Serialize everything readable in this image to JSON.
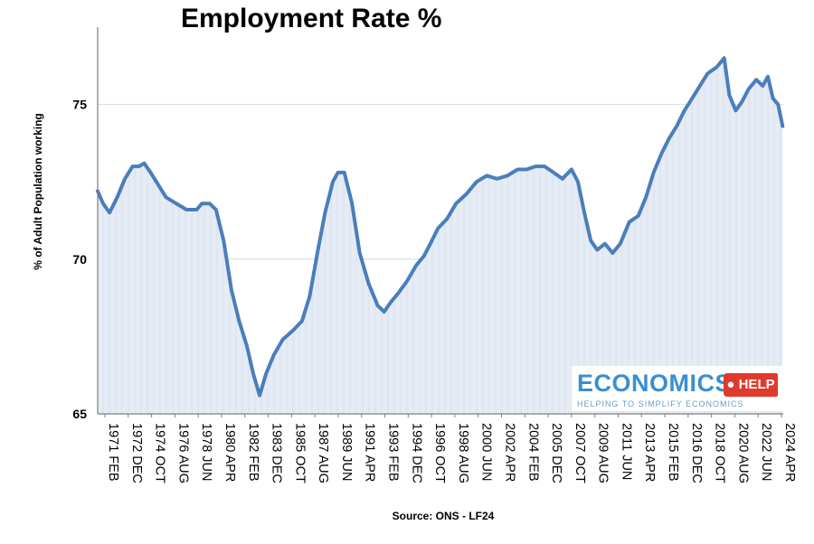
{
  "chart_data": {
    "type": "area",
    "title": "Employment Rate %",
    "ylabel": "% of Adult Population working",
    "xlabel": "Source: ONS - LF24",
    "ylim": [
      65,
      77.5
    ],
    "yticks": [
      65,
      70,
      75
    ],
    "xlim": [
      1971.08,
      2024.5
    ],
    "grid": "horizontal",
    "xtick_labels": [
      {
        "label": "1971 FEB",
        "x": 1971.08
      },
      {
        "label": "1972 DEC",
        "x": 1972.92
      },
      {
        "label": "1974 OCT",
        "x": 1974.75
      },
      {
        "label": "1976 AUG",
        "x": 1976.58
      },
      {
        "label": "1978 JUN",
        "x": 1978.42
      },
      {
        "label": "1980 APR",
        "x": 1980.25
      },
      {
        "label": "1982 FEB",
        "x": 1982.08
      },
      {
        "label": "1983 DEC",
        "x": 1983.92
      },
      {
        "label": "1985 OCT",
        "x": 1985.75
      },
      {
        "label": "1987 AUG",
        "x": 1987.58
      },
      {
        "label": "1989 JUN",
        "x": 1989.42
      },
      {
        "label": "1991 APR",
        "x": 1991.25
      },
      {
        "label": "1993 FEB",
        "x": 1993.08
      },
      {
        "label": "1994 DEC",
        "x": 1994.92
      },
      {
        "label": "1996 OCT",
        "x": 1996.75
      },
      {
        "label": "1998 AUG",
        "x": 1998.58
      },
      {
        "label": "2000 JUN",
        "x": 2000.42
      },
      {
        "label": "2002 APR",
        "x": 2002.25
      },
      {
        "label": "2004 FEB",
        "x": 2004.08
      },
      {
        "label": "2005 DEC",
        "x": 2005.92
      },
      {
        "label": "2007 OCT",
        "x": 2007.75
      },
      {
        "label": "2009 AUG",
        "x": 2009.58
      },
      {
        "label": "2011 JUN",
        "x": 2011.42
      },
      {
        "label": "2013 APR",
        "x": 2013.25
      },
      {
        "label": "2015 FEB",
        "x": 2015.08
      },
      {
        "label": "2016 DEC",
        "x": 2016.92
      },
      {
        "label": "2018 OCT",
        "x": 2018.75
      },
      {
        "label": "2020 AUG",
        "x": 2020.58
      },
      {
        "label": "2022 JUN",
        "x": 2022.42
      },
      {
        "label": "2024 APR",
        "x": 2024.25
      }
    ],
    "series": [
      {
        "line_color": "#4a7ebb",
        "fill_color": "#e6ecf5",
        "x": [
          1971.08,
          1971.5,
          1972.0,
          1972.6,
          1973.2,
          1973.8,
          1974.3,
          1974.7,
          1975.2,
          1975.8,
          1976.4,
          1977.2,
          1978.0,
          1978.8,
          1979.2,
          1979.8,
          1980.3,
          1980.9,
          1981.5,
          1982.1,
          1982.7,
          1983.2,
          1983.7,
          1984.2,
          1984.8,
          1985.5,
          1986.3,
          1987.0,
          1987.6,
          1988.2,
          1988.8,
          1989.4,
          1989.8,
          1990.3,
          1990.9,
          1991.5,
          1992.2,
          1992.9,
          1993.4,
          1993.9,
          1994.5,
          1995.2,
          1995.9,
          1996.5,
          1997.0,
          1997.6,
          1998.3,
          1999.0,
          1999.8,
          2000.6,
          2001.4,
          2002.2,
          2003.0,
          2003.8,
          2004.5,
          2005.2,
          2005.9,
          2006.6,
          2007.3,
          2008.0,
          2008.5,
          2009.0,
          2009.5,
          2010.0,
          2010.6,
          2011.2,
          2011.8,
          2012.5,
          2013.2,
          2013.8,
          2014.4,
          2015.0,
          2015.6,
          2016.2,
          2016.8,
          2017.4,
          2018.0,
          2018.6,
          2019.3,
          2019.9,
          2020.3,
          2020.8,
          2021.3,
          2021.8,
          2022.4,
          2022.9,
          2023.3,
          2023.7,
          2024.1,
          2024.45
        ],
        "values": [
          72.2,
          71.8,
          71.5,
          72.0,
          72.6,
          73.0,
          73.0,
          73.1,
          72.8,
          72.4,
          72.0,
          71.8,
          71.6,
          71.6,
          71.8,
          71.8,
          71.6,
          70.6,
          69.0,
          68.0,
          67.2,
          66.3,
          65.6,
          66.3,
          66.9,
          67.4,
          67.7,
          68.0,
          68.8,
          70.2,
          71.5,
          72.5,
          72.8,
          72.8,
          71.8,
          70.2,
          69.2,
          68.5,
          68.3,
          68.6,
          68.9,
          69.3,
          69.8,
          70.1,
          70.5,
          71.0,
          71.3,
          71.8,
          72.1,
          72.5,
          72.7,
          72.6,
          72.7,
          72.9,
          72.9,
          73.0,
          73.0,
          72.8,
          72.6,
          72.9,
          72.5,
          71.5,
          70.6,
          70.3,
          70.5,
          70.2,
          70.5,
          71.2,
          71.4,
          72.0,
          72.8,
          73.4,
          73.9,
          74.3,
          74.8,
          75.2,
          75.6,
          76.0,
          76.2,
          76.5,
          75.3,
          74.8,
          75.1,
          75.5,
          75.8,
          75.6,
          75.9,
          75.2,
          75.0,
          74.3
        ]
      }
    ]
  },
  "logo": {
    "main": "ECONOMICS",
    "badge": "● HELP",
    "tagline": "HELPING TO SIMPLIFY ECONOMICS"
  }
}
